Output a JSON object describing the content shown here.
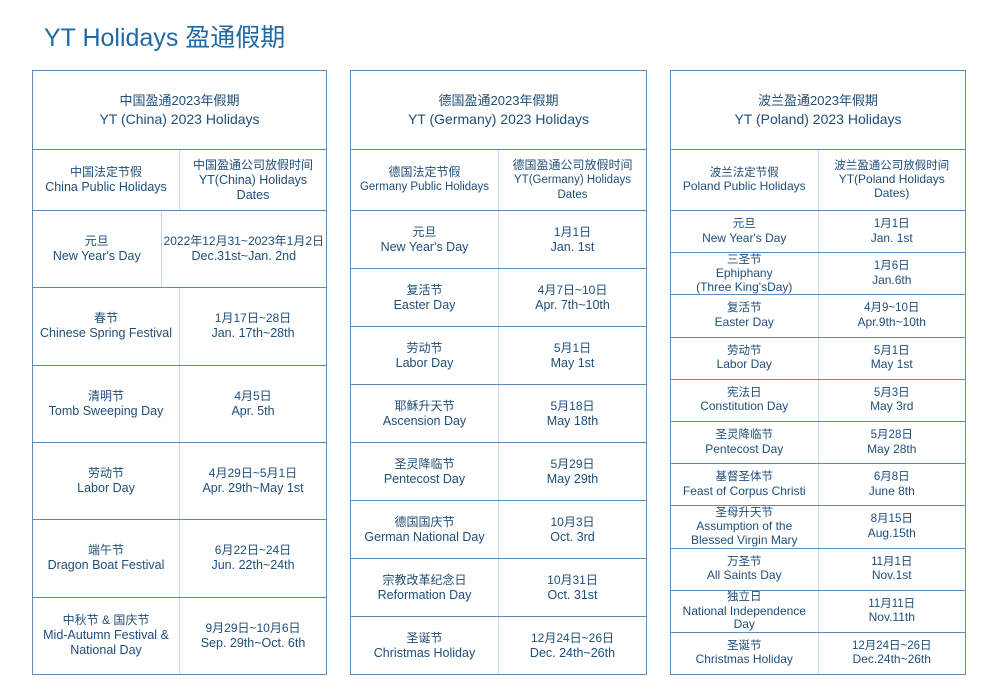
{
  "page_title": "YT Holidays 盈通假期",
  "panels": [
    {
      "title_zh": "中国盈通2023年假期",
      "title_en": "YT (China) 2023 Holidays",
      "col_left_zh": "中国法定节假",
      "col_left_en": "China Public Holidays",
      "col_right_zh": "中国盈通公司放假时间",
      "col_right_en": "YT(China) Holidays Dates",
      "rows": [
        {
          "holiday_zh": "元旦",
          "holiday_en": "New Year's Day",
          "date_zh": "2022年12月31~2023年1月2日",
          "date_en": "Dec.31st~Jan. 2nd"
        },
        {
          "holiday_zh": "春节",
          "holiday_en": "Chinese Spring Festival",
          "date_zh": "1月17日~28日",
          "date_en": "Jan. 17th~28th"
        },
        {
          "holiday_zh": "清明节",
          "holiday_en": "Tomb Sweeping Day",
          "date_zh": "4月5日",
          "date_en": "Apr. 5th"
        },
        {
          "holiday_zh": "劳动节",
          "holiday_en": "Labor Day",
          "date_zh": "4月29日~5月1日",
          "date_en": "Apr. 29th~May 1st"
        },
        {
          "holiday_zh": "端午节",
          "holiday_en": "Dragon Boat Festival",
          "date_zh": "6月22日~24日",
          "date_en": "Jun. 22th~24th"
        },
        {
          "holiday_zh": "中秋节 & 国庆节",
          "holiday_en": "Mid-Autumn Festival &\nNational Day",
          "date_zh": "9月29日~10月6日",
          "date_en": "Sep. 29th~Oct. 6th"
        }
      ]
    },
    {
      "title_zh": "德国盈通2023年假期",
      "title_en": "YT (Germany) 2023 Holidays",
      "col_left_zh": "德国法定节假",
      "col_left_en": "Germany Public Holidays",
      "col_right_zh": "德国盈通公司放假时间",
      "col_right_en": "YT(Germany) Holidays Dates",
      "rows": [
        {
          "holiday_zh": "元旦",
          "holiday_en": "New Year's Day",
          "date_zh": "1月1日",
          "date_en": "Jan. 1st"
        },
        {
          "holiday_zh": "复活节",
          "holiday_en": "Easter Day",
          "date_zh": "4月7日~10日",
          "date_en": "Apr. 7th~10th"
        },
        {
          "holiday_zh": "劳动节",
          "holiday_en": "Labor Day",
          "date_zh": "5月1日",
          "date_en": "May 1st"
        },
        {
          "holiday_zh": "耶稣升天节",
          "holiday_en": "Ascension Day",
          "date_zh": "5月18日",
          "date_en": "May 18th"
        },
        {
          "holiday_zh": "圣灵降临节",
          "holiday_en": "Pentecost Day",
          "date_zh": "5月29日",
          "date_en": "May 29th"
        },
        {
          "holiday_zh": "德国国庆节",
          "holiday_en": "German National Day",
          "date_zh": "10月3日",
          "date_en": "Oct. 3rd"
        },
        {
          "holiday_zh": "宗教改革纪念日",
          "holiday_en": "Reformation Day",
          "date_zh": "10月31日",
          "date_en": "Oct. 31st"
        },
        {
          "holiday_zh": "圣诞节",
          "holiday_en": "Christmas Holiday",
          "date_zh": "12月24日~26日",
          "date_en": "Dec. 24th~26th"
        }
      ]
    },
    {
      "title_zh": "波兰盈通2023年假期",
      "title_en": "YT (Poland) 2023 Holidays",
      "col_left_zh": "波兰法定节假",
      "col_left_en": "Poland Public  Holidays",
      "col_right_zh": "波兰盈通公司放假时间",
      "col_right_en": "YT(Poland Holidays\nDates)",
      "rows": [
        {
          "holiday_zh": "元旦",
          "holiday_en": "New Year's Day",
          "date_zh": "1月1日",
          "date_en": "Jan. 1st"
        },
        {
          "holiday_zh": "三圣节",
          "holiday_en": "Ephiphany\n(Three King'sDay)",
          "date_zh": "1月6日",
          "date_en": "Jan.6th"
        },
        {
          "holiday_zh": "复活节",
          "holiday_en": "Easter Day",
          "date_zh": "4月9~10日",
          "date_en": "Apr.9th~10th"
        },
        {
          "holiday_zh": "劳动节",
          "holiday_en": "Labor Day",
          "date_zh": "5月1日",
          "date_en": "May 1st"
        },
        {
          "holiday_zh": "宪法日",
          "holiday_en": "Constitution Day",
          "date_zh": "5月3日",
          "date_en": "May 3rd"
        },
        {
          "holiday_zh": "圣灵降临节",
          "holiday_en": "Pentecost Day",
          "date_zh": "5月28日",
          "date_en": "May 28th"
        },
        {
          "holiday_zh": "基督圣体节",
          "holiday_en": "Feast of Corpus Christi",
          "date_zh": "6月8日",
          "date_en": "June 8th"
        },
        {
          "holiday_zh": "圣母升天节",
          "holiday_en": "Assumption of the\nBlessed Virgin Mary",
          "date_zh": "8月15日",
          "date_en": "Aug.15th"
        },
        {
          "holiday_zh": "万圣节",
          "holiday_en": "All Saints Day",
          "date_zh": "11月1日",
          "date_en": "Nov.1st"
        },
        {
          "holiday_zh": "独立日",
          "holiday_en": "National Independence Day",
          "date_zh": "11月11日",
          "date_en": "Nov.11th"
        },
        {
          "holiday_zh": "圣诞节",
          "holiday_en": "Christmas Holiday",
          "date_zh": "12月24日~26日",
          "date_en": "Dec.24th~26th"
        }
      ]
    }
  ]
}
